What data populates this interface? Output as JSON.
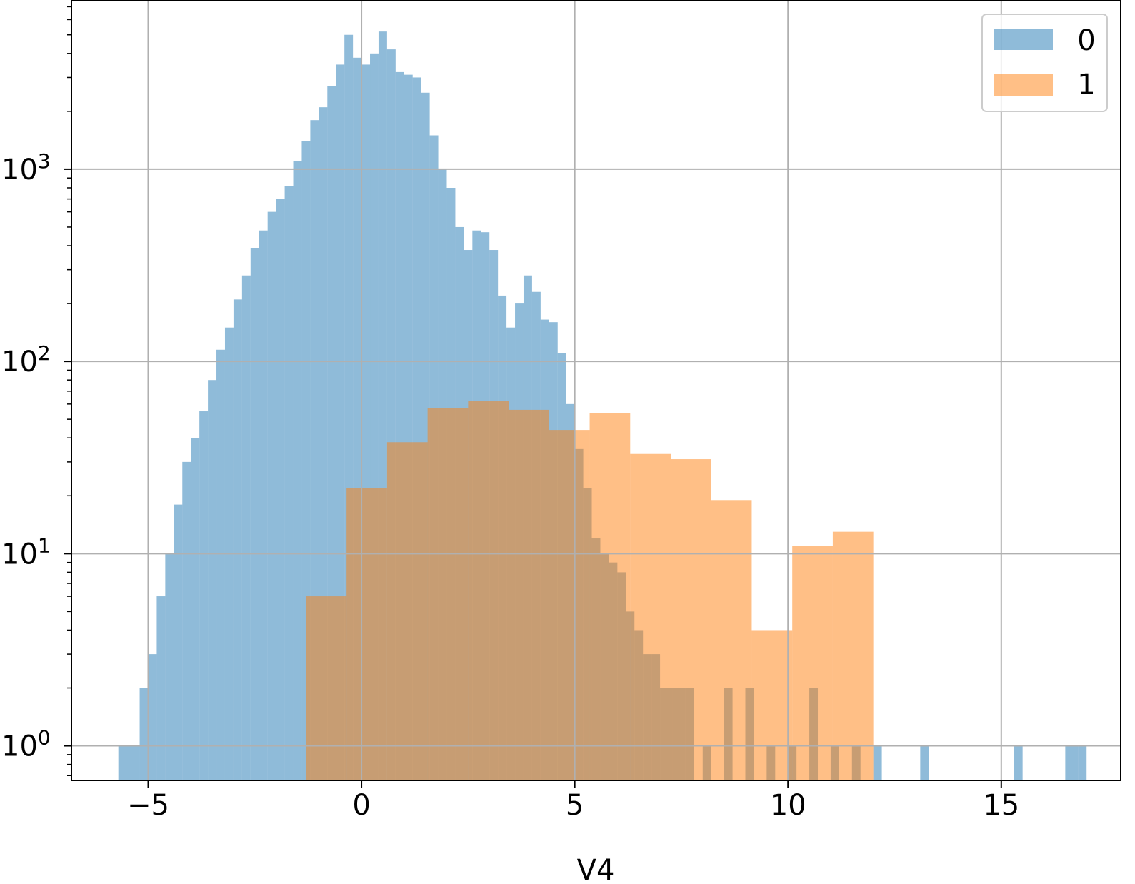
{
  "chart_data": {
    "type": "histogram",
    "title": "",
    "xlabel": "V4",
    "ylabel": "",
    "yscale": "log",
    "xlim": [
      -6.8,
      17.8
    ],
    "ylim_log10": [
      -0.18,
      3.88
    ],
    "grid": true,
    "legend_position": "top-right",
    "x_ticks": [
      {
        "value": -5,
        "label": "−5"
      },
      {
        "value": 0,
        "label": "0"
      },
      {
        "value": 5,
        "label": "5"
      },
      {
        "value": 10,
        "label": "10"
      },
      {
        "value": 15,
        "label": "15"
      }
    ],
    "y_ticks": [
      {
        "exp": 0,
        "base": "10",
        "sup": "0"
      },
      {
        "exp": 1,
        "base": "10",
        "sup": "1"
      },
      {
        "exp": 2,
        "base": "10",
        "sup": "2"
      },
      {
        "exp": 3,
        "base": "10",
        "sup": "3"
      }
    ],
    "series": [
      {
        "name": "0",
        "color": "#1f77b4",
        "opacity": 0.5,
        "bins": [
          [
            -5.7,
            1
          ],
          [
            -5.4,
            1
          ],
          [
            -5.2,
            2
          ],
          [
            -5.0,
            3
          ],
          [
            -4.8,
            6
          ],
          [
            -4.6,
            10
          ],
          [
            -4.4,
            18
          ],
          [
            -4.2,
            30
          ],
          [
            -4.0,
            40
          ],
          [
            -3.8,
            55
          ],
          [
            -3.6,
            80
          ],
          [
            -3.4,
            115
          ],
          [
            -3.2,
            150
          ],
          [
            -3.0,
            210
          ],
          [
            -2.8,
            280
          ],
          [
            -2.6,
            390
          ],
          [
            -2.4,
            480
          ],
          [
            -2.2,
            600
          ],
          [
            -2.0,
            700
          ],
          [
            -1.8,
            820
          ],
          [
            -1.6,
            1100
          ],
          [
            -1.4,
            1400
          ],
          [
            -1.2,
            1800
          ],
          [
            -1.0,
            2100
          ],
          [
            -0.8,
            2700
          ],
          [
            -0.6,
            3500
          ],
          [
            -0.4,
            5000
          ],
          [
            -0.2,
            3800
          ],
          [
            0.0,
            3500
          ],
          [
            0.2,
            4000
          ],
          [
            0.4,
            5200
          ],
          [
            0.6,
            4200
          ],
          [
            0.8,
            3200
          ],
          [
            1.0,
            3100
          ],
          [
            1.2,
            3000
          ],
          [
            1.4,
            2500
          ],
          [
            1.6,
            1500
          ],
          [
            1.8,
            1000
          ],
          [
            2.0,
            800
          ],
          [
            2.2,
            500
          ],
          [
            2.4,
            380
          ],
          [
            2.6,
            480
          ],
          [
            2.8,
            470
          ],
          [
            3.0,
            380
          ],
          [
            3.2,
            220
          ],
          [
            3.4,
            150
          ],
          [
            3.6,
            200
          ],
          [
            3.8,
            280
          ],
          [
            4.0,
            230
          ],
          [
            4.2,
            165
          ],
          [
            4.4,
            160
          ],
          [
            4.6,
            110
          ],
          [
            4.8,
            60
          ],
          [
            5.0,
            35
          ],
          [
            5.2,
            22
          ],
          [
            5.4,
            12
          ],
          [
            5.6,
            10
          ],
          [
            5.8,
            9
          ],
          [
            6.0,
            8
          ],
          [
            6.2,
            5
          ],
          [
            6.4,
            4
          ],
          [
            6.6,
            3
          ],
          [
            6.8,
            3
          ],
          [
            7.0,
            2
          ],
          [
            7.3,
            2
          ],
          [
            7.6,
            2
          ],
          [
            8.0,
            1
          ],
          [
            8.5,
            2
          ],
          [
            9.0,
            2
          ],
          [
            9.5,
            1
          ],
          [
            10.0,
            1
          ],
          [
            10.5,
            2
          ],
          [
            11.0,
            1
          ],
          [
            11.5,
            1
          ],
          [
            12.0,
            1
          ],
          [
            13.1,
            1
          ],
          [
            15.3,
            1
          ],
          [
            16.5,
            1
          ],
          [
            16.8,
            1
          ]
        ]
      },
      {
        "name": "1",
        "color": "#ff7f0e",
        "opacity": 0.5,
        "bins": [
          [
            -1.3,
            6
          ],
          [
            -0.35,
            22
          ],
          [
            0.6,
            38
          ],
          [
            1.55,
            57
          ],
          [
            2.5,
            62
          ],
          [
            3.45,
            56
          ],
          [
            4.4,
            44
          ],
          [
            5.35,
            54
          ],
          [
            6.3,
            33
          ],
          [
            7.25,
            31
          ],
          [
            8.2,
            19
          ],
          [
            9.15,
            4
          ],
          [
            10.1,
            11
          ],
          [
            11.05,
            13
          ]
        ],
        "bin_width": 0.95
      }
    ]
  }
}
